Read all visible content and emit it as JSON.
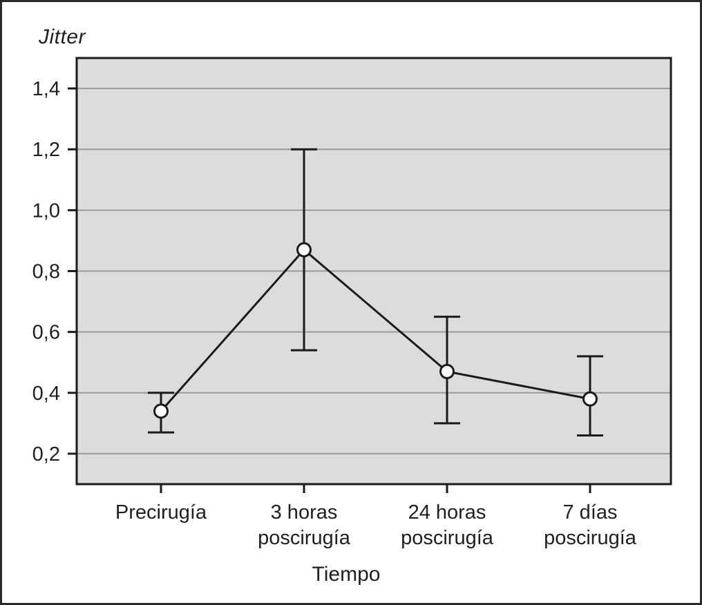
{
  "figure": {
    "description": "Error bar chart of Jitter over time around surgery"
  },
  "colors": {
    "figure_background": "#ffffff",
    "figure_border": "#2a2a2a",
    "plot_background": "#dcdcdc",
    "gridline": "#9a9a9a",
    "axis": "#1a1a1a",
    "line": "#1a1a1a",
    "marker_fill": "#ffffff",
    "text": "#1f1f1f"
  },
  "chart_data": {
    "type": "line",
    "subtype": "mean-with-error-bars",
    "title": "",
    "ylabel": "Jitter",
    "xlabel": "Tiempo",
    "categories": [
      "Precirugía",
      "3 horas poscirugía",
      "24 horas poscirugía",
      "7 días poscirugía"
    ],
    "categories_wrapped": [
      [
        "Precirugía"
      ],
      [
        "3 horas",
        "poscirugía"
      ],
      [
        "24 horas",
        "poscirugía"
      ],
      [
        "7 días",
        "poscirugía"
      ]
    ],
    "series": [
      {
        "name": "Jitter",
        "values": [
          0.34,
          0.87,
          0.47,
          0.38
        ],
        "error_low": [
          0.27,
          0.54,
          0.3,
          0.26
        ],
        "error_high": [
          0.4,
          1.2,
          0.65,
          0.52
        ]
      }
    ],
    "y_ticks": [
      0.2,
      0.4,
      0.6,
      0.8,
      1.0,
      1.2,
      1.4
    ],
    "y_tick_labels": [
      "0,2",
      "0,4",
      "0,6",
      "0,8",
      "1,0",
      "1,2",
      "1,4"
    ],
    "ylim": [
      0.1,
      1.5
    ],
    "grid": "horizontal",
    "legend": "none",
    "marker": "open-circle",
    "decimal_separator": ","
  }
}
